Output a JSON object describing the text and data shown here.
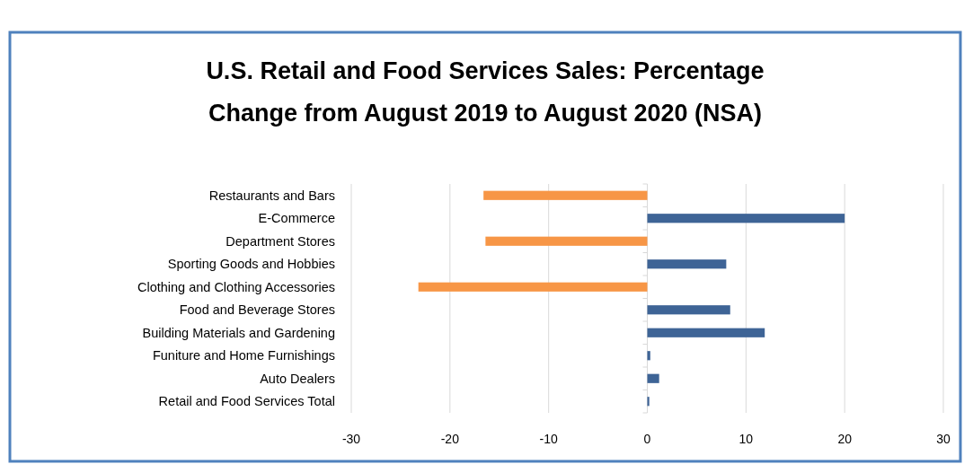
{
  "chart_data": {
    "type": "bar",
    "orientation": "horizontal",
    "title": "U.S. Retail and Food Services Sales: Percentage\nChange from August 2019 to August 2020 (NSA)",
    "categories": [
      "Restaurants and Bars",
      "E-Commerce",
      "Department Stores",
      "Sporting Goods and Hobbies",
      "Clothing and Clothing Accessories",
      "Food and Beverage Stores",
      "Building Materials and Gardening",
      "Funiture and Home Furnishings",
      "Auto Dealers",
      "Retail and Food Services Total"
    ],
    "values": [
      -16.6,
      20.0,
      -16.4,
      8.0,
      -23.2,
      8.4,
      11.9,
      0.3,
      1.2,
      0.2
    ],
    "colors": [
      "#f79646",
      "#3e6496",
      "#f79646",
      "#3e6496",
      "#f79646",
      "#3e6496",
      "#3e6496",
      "#3e6496",
      "#3e6496",
      "#3e6496"
    ],
    "xlim": [
      -30,
      30
    ],
    "xticks": [
      -30,
      -20,
      -10,
      0,
      10,
      20,
      30
    ],
    "grid": "x"
  }
}
